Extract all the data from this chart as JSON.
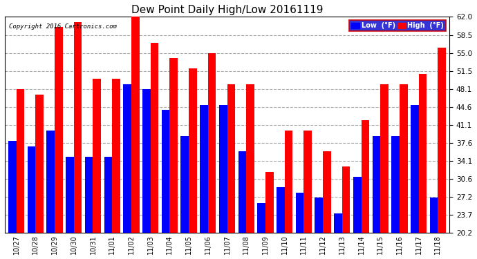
{
  "title": "Dew Point Daily High/Low 20161119",
  "copyright": "Copyright 2016 Cartronics.com",
  "categories": [
    "10/27",
    "10/28",
    "10/29",
    "10/30",
    "10/31",
    "11/01",
    "11/02",
    "11/03",
    "11/04",
    "11/05",
    "11/06",
    "11/07",
    "11/08",
    "11/09",
    "11/10",
    "11/11",
    "11/12",
    "11/13",
    "11/14",
    "11/15",
    "11/16",
    "11/17",
    "11/18"
  ],
  "low_values": [
    38,
    37,
    40,
    35,
    35,
    35,
    49,
    48,
    44,
    39,
    45,
    45,
    36,
    26,
    29,
    28,
    27,
    24,
    31,
    39,
    39,
    45,
    27
  ],
  "high_values": [
    48,
    47,
    60,
    61,
    50,
    50,
    62,
    57,
    54,
    52,
    55,
    49,
    49,
    32,
    40,
    40,
    36,
    33,
    42,
    49,
    49,
    51,
    56
  ],
  "low_color": "#0000ff",
  "high_color": "#ff0000",
  "bg_color": "#ffffff",
  "ylim_min": 20.2,
  "ylim_max": 62.0,
  "yticks": [
    20.2,
    23.7,
    27.2,
    30.6,
    34.1,
    37.6,
    41.1,
    44.6,
    48.1,
    51.5,
    55.0,
    58.5,
    62.0
  ],
  "grid_color": "#aaaaaa",
  "legend_low_label": "Low  (°F)",
  "legend_high_label": "High  (°F)",
  "bar_bottom": 20.2
}
